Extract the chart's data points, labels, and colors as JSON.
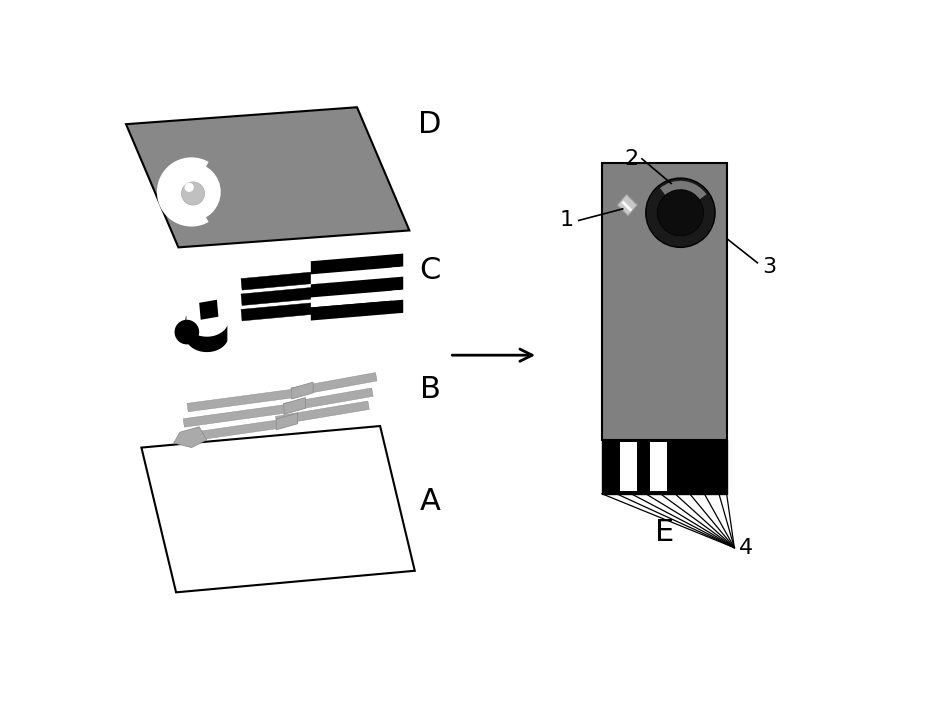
{
  "bg_color": "#ffffff",
  "label_D": "D",
  "label_C": "C",
  "label_B": "B",
  "label_A": "A",
  "label_E": "E",
  "label_1": "1",
  "label_2": "2",
  "label_3": "3",
  "label_4": "4",
  "label_fontsize": 22,
  "small_label_fontsize": 16,
  "gray_body": "#808080",
  "black": "#000000",
  "silver": "#aaaaaa",
  "white": "#ffffff",
  "layer_d_gray": "#888888",
  "arrow_color": "#000000"
}
